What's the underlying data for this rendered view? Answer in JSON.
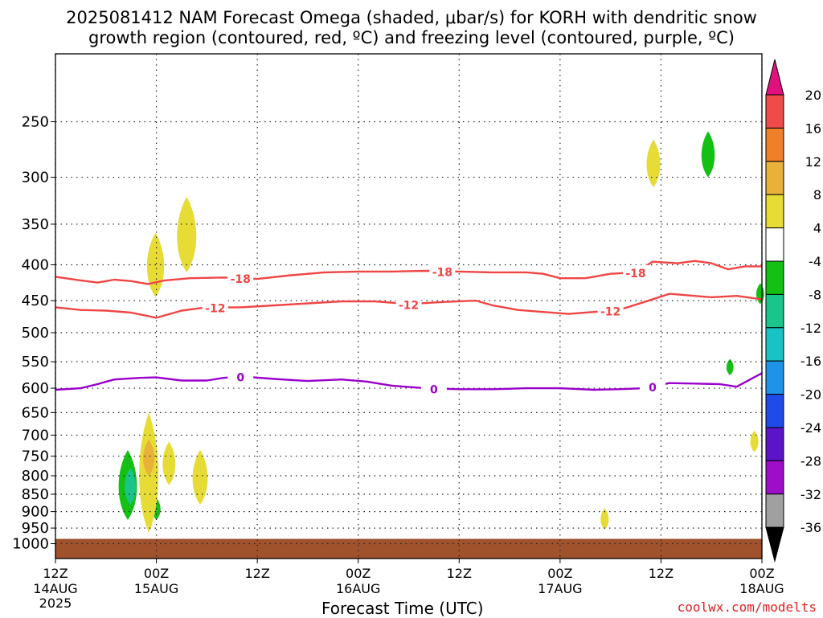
{
  "title": {
    "line1": "2025081412 NAM Forecast Omega (shaded, μbar/s) for KORH with dendritic snow",
    "line2": "growth region (contoured, red, ºC) and freezing level (contoured, purple, ºC)"
  },
  "credit": "coolwx.com/modelts",
  "chart_data": {
    "type": "heatmap",
    "xlabel": "Forecast Time (UTC)",
    "xlim_hours": [
      0,
      84
    ],
    "x_ticks": [
      {
        "hour": 0,
        "top": "12Z",
        "mid": "14AUG",
        "bottom": "2025"
      },
      {
        "hour": 12,
        "top": "00Z",
        "mid": "15AUG",
        "bottom": ""
      },
      {
        "hour": 24,
        "top": "12Z",
        "mid": "",
        "bottom": ""
      },
      {
        "hour": 36,
        "top": "00Z",
        "mid": "16AUG",
        "bottom": ""
      },
      {
        "hour": 48,
        "top": "12Z",
        "mid": "",
        "bottom": ""
      },
      {
        "hour": 60,
        "top": "00Z",
        "mid": "17AUG",
        "bottom": ""
      },
      {
        "hour": 72,
        "top": "12Z",
        "mid": "",
        "bottom": ""
      },
      {
        "hour": 84,
        "top": "00Z",
        "mid": "18AUG",
        "bottom": ""
      }
    ],
    "y_axis": {
      "scale": "log-pressure",
      "ylim_hpa": [
        1050,
        200
      ],
      "ticks": [
        250,
        300,
        350,
        400,
        450,
        500,
        550,
        600,
        650,
        700,
        750,
        800,
        850,
        900,
        950,
        1000
      ]
    },
    "grid": true,
    "surface_color": "#a0522d",
    "colorbar": {
      "labels": [
        "20",
        "16",
        "12",
        "8",
        "4",
        "-4",
        "-8",
        "-12",
        "-16",
        "-20",
        "-24",
        "-28",
        "-32",
        "-36"
      ],
      "colors": [
        "#e0117f",
        "#ef4b4b",
        "#f07f2a",
        "#e8b13a",
        "#e6dc35",
        "#ffffff",
        "#13c013",
        "#19c58a",
        "#1ac3c3",
        "#1f93e8",
        "#1f4be8",
        "#5b14c7",
        "#9e0ec9",
        "#a0a0a0",
        "#000000"
      ]
    },
    "contours": [
      {
        "level": "-18",
        "color": "#ef4545",
        "labels_at_hours": [
          22,
          46,
          69
        ],
        "points": [
          [
            0,
            416
          ],
          [
            3,
            421
          ],
          [
            5,
            424
          ],
          [
            7,
            420
          ],
          [
            9,
            422
          ],
          [
            11,
            426
          ],
          [
            13,
            421
          ],
          [
            16,
            418
          ],
          [
            20,
            417
          ],
          [
            24,
            419
          ],
          [
            28,
            414
          ],
          [
            32,
            410
          ],
          [
            36,
            409
          ],
          [
            40,
            409
          ],
          [
            44,
            408
          ],
          [
            48,
            409
          ],
          [
            52,
            410
          ],
          [
            56,
            410
          ],
          [
            58,
            412
          ],
          [
            60,
            418
          ],
          [
            63,
            418
          ],
          [
            66,
            412
          ],
          [
            69,
            410
          ],
          [
            71,
            396
          ],
          [
            74,
            398
          ],
          [
            76,
            395
          ],
          [
            78,
            398
          ],
          [
            80,
            406
          ],
          [
            82,
            402
          ],
          [
            84,
            402
          ]
        ]
      },
      {
        "level": "-12",
        "color": "#ef4545",
        "labels_at_hours": [
          19,
          42,
          66
        ],
        "points": [
          [
            0,
            460
          ],
          [
            3,
            464
          ],
          [
            6,
            465
          ],
          [
            9,
            468
          ],
          [
            12,
            476
          ],
          [
            15,
            465
          ],
          [
            18,
            460
          ],
          [
            22,
            460
          ],
          [
            26,
            457
          ],
          [
            30,
            454
          ],
          [
            34,
            451
          ],
          [
            38,
            451
          ],
          [
            42,
            455
          ],
          [
            46,
            452
          ],
          [
            50,
            450
          ],
          [
            52,
            457
          ],
          [
            55,
            464
          ],
          [
            58,
            467
          ],
          [
            61,
            470
          ],
          [
            64,
            467
          ],
          [
            67,
            464
          ],
          [
            70,
            452
          ],
          [
            73,
            440
          ],
          [
            75,
            442
          ],
          [
            78,
            445
          ],
          [
            81,
            443
          ],
          [
            84,
            448
          ]
        ]
      },
      {
        "level": "0",
        "color": "#9a00cc",
        "labels_at_hours": [
          22,
          45,
          71
        ],
        "points": [
          [
            0,
            603
          ],
          [
            3,
            600
          ],
          [
            5,
            592
          ],
          [
            7,
            583
          ],
          [
            10,
            580
          ],
          [
            12,
            579
          ],
          [
            15,
            585
          ],
          [
            18,
            585
          ],
          [
            20,
            580
          ],
          [
            22,
            577
          ],
          [
            26,
            582
          ],
          [
            30,
            586
          ],
          [
            34,
            583
          ],
          [
            37,
            587
          ],
          [
            40,
            595
          ],
          [
            44,
            600
          ],
          [
            48,
            602
          ],
          [
            52,
            602
          ],
          [
            56,
            600
          ],
          [
            60,
            600
          ],
          [
            64,
            603
          ],
          [
            67,
            602
          ],
          [
            70,
            600
          ],
          [
            73,
            590
          ],
          [
            76,
            591
          ],
          [
            79,
            592
          ],
          [
            81,
            597
          ],
          [
            84,
            571
          ]
        ]
      }
    ],
    "shaded_regions": [
      {
        "value": "-6",
        "hour": 8.6,
        "p_top": 735,
        "p_bottom": 925
      },
      {
        "value": "-10",
        "hour": 8.9,
        "p_top": 780,
        "p_bottom": 880
      },
      {
        "value": "-6",
        "hour": 12.0,
        "p_top": 860,
        "p_bottom": 925
      },
      {
        "value": "-6",
        "hour": 77.6,
        "p_top": 258,
        "p_bottom": 300
      },
      {
        "value": "-6",
        "hour": 80.2,
        "p_top": 545,
        "p_bottom": 575
      },
      {
        "value": "-6",
        "hour": 83.8,
        "p_top": 425,
        "p_bottom": 455
      },
      {
        "value": "6",
        "hour": 11.1,
        "p_top": 650,
        "p_bottom": 965
      },
      {
        "value": "8",
        "hour": 11.1,
        "p_top": 710,
        "p_bottom": 800
      },
      {
        "value": "6",
        "hour": 11.9,
        "p_top": 360,
        "p_bottom": 445
      },
      {
        "value": "6",
        "hour": 13.5,
        "p_top": 715,
        "p_bottom": 825
      },
      {
        "value": "6",
        "hour": 15.6,
        "p_top": 320,
        "p_bottom": 410
      },
      {
        "value": "6",
        "hour": 17.2,
        "p_top": 735,
        "p_bottom": 880
      },
      {
        "value": "6",
        "hour": 71.1,
        "p_top": 265,
        "p_bottom": 310
      },
      {
        "value": "6",
        "hour": 65.3,
        "p_top": 890,
        "p_bottom": 955
      },
      {
        "value": "6",
        "hour": 83.1,
        "p_top": 690,
        "p_bottom": 740
      }
    ]
  }
}
